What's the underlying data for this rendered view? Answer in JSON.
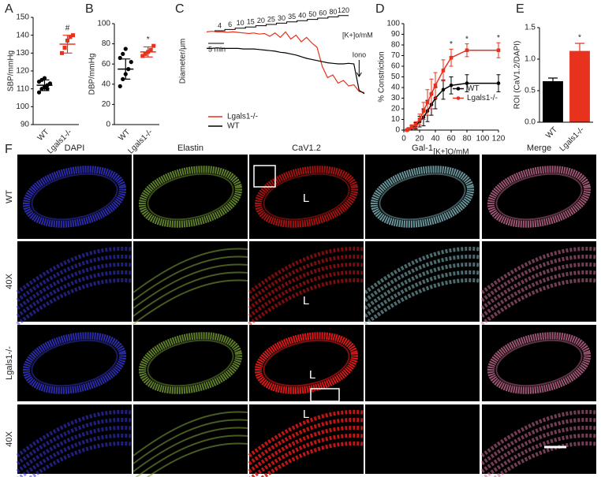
{
  "chart_data": [
    {
      "type": "strip",
      "letter": "A",
      "y_label": "SBP/mmHg",
      "categories": [
        "WT",
        "Lgals1-/-"
      ],
      "points": [
        [
          108,
          110,
          111,
          112,
          113,
          114,
          115,
          116,
          110
        ],
        [
          130,
          133,
          137,
          139,
          140
        ]
      ],
      "means": [
        112,
        135
      ],
      "errors": [
        3,
        5
      ],
      "colors": [
        "#000000",
        "#e8321e"
      ],
      "annotations": [
        null,
        "#"
      ],
      "ylim": [
        90,
        150
      ],
      "yticks": [
        90,
        100,
        110,
        120,
        130,
        140,
        150
      ]
    },
    {
      "type": "strip",
      "letter": "B",
      "y_label": "DBP/mmHg",
      "categories": [
        "WT",
        "Lgals1-/-"
      ],
      "points": [
        [
          38,
          45,
          50,
          55,
          62,
          66,
          70,
          75
        ],
        [
          68,
          70,
          72,
          74,
          78
        ]
      ],
      "means": [
        55,
        72
      ],
      "errors": [
        10,
        5
      ],
      "colors": [
        "#000000",
        "#e8321e"
      ],
      "annotations": [
        null,
        "*"
      ],
      "ylim": [
        0,
        100
      ],
      "yticks": [
        0,
        20,
        40,
        60,
        80,
        100
      ]
    },
    {
      "type": "trace",
      "letter": "C",
      "y_label": "Diameter/μm",
      "k_steps": [
        4,
        6,
        10,
        15,
        20,
        25,
        30,
        35,
        40,
        50,
        60,
        80,
        120
      ],
      "k_label": "[K+]o/mM",
      "scale_bar_label": "5 min",
      "iono_label": "Iono",
      "x": [
        0,
        2,
        4,
        6,
        8,
        10,
        12,
        14,
        16,
        18,
        20,
        22,
        24,
        26,
        28,
        30,
        32,
        34,
        36,
        38,
        40,
        42,
        44,
        46,
        48,
        50,
        52,
        54,
        56,
        58,
        60
      ],
      "xlim": [
        0,
        60
      ],
      "ylim": [
        40,
        190
      ],
      "series": [
        {
          "name": "Lgals1-/-",
          "color": "#e8321e",
          "values": [
            168,
            169,
            168,
            168,
            167,
            168,
            167,
            166,
            165,
            166,
            164,
            165,
            160,
            166,
            158,
            168,
            155,
            162,
            150,
            158,
            148,
            140,
            105,
            85,
            90,
            75,
            80,
            70,
            72,
            60,
            58
          ]
        },
        {
          "name": "WT",
          "color": "#000000",
          "values": [
            138,
            138,
            139,
            138,
            138,
            138,
            138,
            137,
            137,
            137,
            136,
            135,
            134,
            133,
            131,
            130,
            128,
            126,
            123,
            120,
            118,
            116,
            114,
            112,
            111,
            110,
            110,
            111,
            110,
            62,
            56
          ]
        }
      ],
      "legend": "lower left"
    },
    {
      "type": "line",
      "letter": "D",
      "y_label": "% Constriction",
      "x_label": "[K+]O/mM",
      "x": [
        4,
        6,
        10,
        15,
        20,
        25,
        30,
        35,
        40,
        50,
        60,
        80,
        120
      ],
      "series": [
        {
          "name": "WT",
          "color": "#000000",
          "values": [
            0,
            1,
            2,
            4,
            8,
            12,
            18,
            24,
            30,
            38,
            42,
            44,
            44
          ],
          "errors": [
            1,
            1,
            2,
            3,
            5,
            8,
            10,
            10,
            10,
            9,
            8,
            8,
            8
          ]
        },
        {
          "name": "Lgals1-/-",
          "color": "#e8321e",
          "values": [
            0,
            1,
            3,
            5,
            10,
            18,
            26,
            34,
            42,
            56,
            68,
            75,
            75
          ],
          "errors": [
            1,
            1,
            2,
            3,
            5,
            8,
            12,
            14,
            12,
            10,
            8,
            6,
            7
          ]
        }
      ],
      "annotations": [
        {
          "x": 60,
          "text": "*"
        },
        {
          "x": 80,
          "text": "*"
        },
        {
          "x": 120,
          "text": "*"
        }
      ],
      "xlim": [
        0,
        120
      ],
      "xticks": [
        0,
        20,
        40,
        60,
        80,
        100,
        120
      ],
      "ylim": [
        0,
        100
      ],
      "yticks": [
        0,
        10,
        20,
        30,
        40,
        50,
        60,
        70,
        80,
        90,
        100
      ],
      "legend": "right"
    },
    {
      "type": "bar",
      "letter": "E",
      "y_label": "ROI (CaV1.2/DAPI)",
      "categories": [
        "WT",
        "Lgals1-/-"
      ],
      "values": [
        0.65,
        1.13
      ],
      "errors": [
        0.05,
        0.12
      ],
      "colors": [
        "#000000",
        "#e8321e"
      ],
      "annotations": [
        null,
        "*"
      ],
      "ylim": [
        0,
        1.5
      ],
      "yticks": [
        {
          "value": 0,
          "label": "0.0"
        },
        {
          "value": 0.5,
          "label": "0.5"
        },
        {
          "value": 1,
          "label": "1.0"
        },
        {
          "value": 1.5,
          "label": "1.5"
        }
      ]
    }
  ],
  "figure_f": {
    "letter": "F",
    "columns": [
      "DAPI",
      "Elastin",
      "CaV1.2",
      "Gal-1",
      "Merge"
    ],
    "rows": [
      "WT",
      "40X",
      "Lgals1-/-",
      "40X"
    ],
    "lumen_label": "L"
  }
}
